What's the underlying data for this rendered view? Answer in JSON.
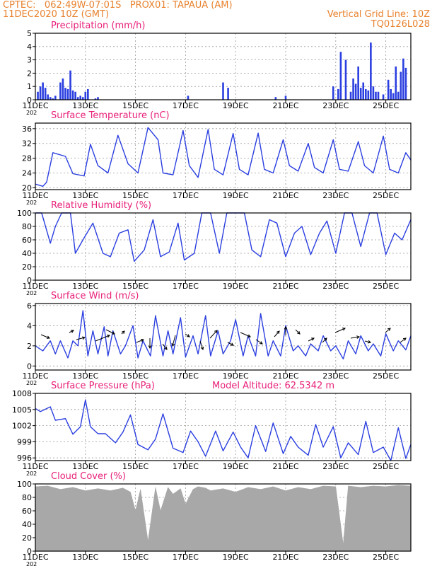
{
  "header": {
    "left_line1": "CPTEC:   062:49W-07:01S   PROX01: TAPAUA (AM)",
    "left_line2": "11DEC2020 10Z (GMT)",
    "right_line1": "Vertical Grid Line: 10Z",
    "right_line2": "TQ0126L028"
  },
  "colors": {
    "header": "#e8822e",
    "title": "#e8207a",
    "series": "#2b3fe0",
    "cloud": "#a8a8a8",
    "grid": "#9a9a9a",
    "frame": "#000000"
  },
  "x_axis": {
    "range_days": [
      0,
      15
    ],
    "tick_day_offsets": [
      0,
      2,
      4,
      6,
      8,
      10,
      12,
      14
    ],
    "tick_labels": [
      "11DEC",
      "13DEC",
      "15DEC",
      "17DEC",
      "19DEC",
      "21DEC",
      "23DEC",
      "25DEC"
    ],
    "year_fragment": "202"
  },
  "chart_data": [
    {
      "id": "precip",
      "type": "bar",
      "title": "Precipitation (mm/h)",
      "ylim": [
        0,
        5
      ],
      "yticks": [
        0,
        1,
        2,
        3,
        4,
        5
      ],
      "grid": true,
      "x_day_offsets": [
        0.1,
        0.2,
        0.3,
        0.4,
        0.5,
        0.6,
        0.7,
        0.8,
        1.0,
        1.1,
        1.2,
        1.3,
        1.4,
        1.5,
        1.6,
        1.7,
        1.8,
        1.9,
        2.0,
        2.1,
        2.4,
        2.5,
        6.1,
        7.5,
        7.7,
        9.6,
        10.0,
        11.9,
        12.1,
        12.2,
        12.4,
        12.6,
        12.7,
        12.8,
        12.9,
        13.0,
        13.1,
        13.2,
        13.3,
        13.4,
        13.5,
        13.6,
        13.7,
        13.9,
        14.1,
        14.2,
        14.3,
        14.4,
        14.5,
        14.6,
        14.7,
        14.8
      ],
      "values": [
        0.6,
        1.0,
        1.3,
        0.9,
        0.4,
        0.2,
        0.1,
        0.3,
        1.3,
        1.6,
        0.9,
        0.8,
        2.2,
        0.7,
        0.6,
        0.2,
        0.3,
        0.2,
        0.6,
        0.8,
        0.1,
        0.2,
        0.3,
        1.3,
        0.9,
        0.2,
        0.3,
        1.0,
        0.8,
        3.6,
        3.0,
        0.6,
        1.6,
        1.2,
        2.5,
        0.9,
        1.3,
        0.8,
        0.7,
        4.3,
        1.0,
        0.6,
        0.6,
        0.4,
        1.5,
        0.8,
        0.5,
        2.5,
        0.6,
        2.1,
        3.1,
        2.4
      ]
    },
    {
      "id": "temp",
      "type": "line",
      "title": "Surface Temperature (nC)",
      "ylim": [
        19.5,
        37.5
      ],
      "yticks": [
        20,
        24,
        28,
        32,
        36
      ],
      "grid": true,
      "x_day_offsets": [
        0,
        0.3,
        0.45,
        0.7,
        1.2,
        1.5,
        1.95,
        2.2,
        2.5,
        2.9,
        3.3,
        3.7,
        4.1,
        4.5,
        4.9,
        5.1,
        5.5,
        5.9,
        6.15,
        6.5,
        6.9,
        7.15,
        7.5,
        7.9,
        8.15,
        8.5,
        8.9,
        9.15,
        9.5,
        9.9,
        10.15,
        10.5,
        10.9,
        11.15,
        11.5,
        11.9,
        12.15,
        12.5,
        12.9,
        13.15,
        13.5,
        13.9,
        14.15,
        14.5,
        14.8,
        15.0
      ],
      "values": [
        21.0,
        20.4,
        21.5,
        29.5,
        28.5,
        23.8,
        23.2,
        31.8,
        26.0,
        24.0,
        34.2,
        26.5,
        24.0,
        36.3,
        33.0,
        24.0,
        23.5,
        35.5,
        26.0,
        22.8,
        35.8,
        25.0,
        23.5,
        34.7,
        25.0,
        23.5,
        34.8,
        25.0,
        24.0,
        33.0,
        26.0,
        24.5,
        32.0,
        25.5,
        24.0,
        33.0,
        25.0,
        24.5,
        32.5,
        26.0,
        24.0,
        34.0,
        25.0,
        24.0,
        29.5,
        27.5
      ]
    },
    {
      "id": "rh",
      "type": "line",
      "title": "Relative Humidity (%)",
      "ylim": [
        0,
        100
      ],
      "yticks": [
        0,
        20,
        40,
        60,
        80,
        100
      ],
      "grid": true,
      "x_day_offsets": [
        0,
        0.25,
        0.6,
        0.8,
        1.05,
        1.4,
        1.6,
        1.9,
        2.3,
        2.7,
        3.0,
        3.35,
        3.7,
        3.95,
        4.35,
        4.7,
        5.0,
        5.35,
        5.7,
        5.95,
        6.35,
        6.65,
        7.0,
        7.35,
        7.65,
        8.0,
        8.35,
        8.65,
        9.0,
        9.35,
        9.65,
        10.0,
        10.35,
        10.65,
        11.0,
        11.35,
        11.65,
        12.0,
        12.35,
        12.65,
        13.0,
        13.35,
        13.65,
        14.0,
        14.35,
        14.65,
        15.0
      ],
      "values": [
        100,
        100,
        55,
        80,
        100,
        100,
        40,
        60,
        85,
        40,
        35,
        70,
        75,
        28,
        45,
        90,
        35,
        42,
        85,
        30,
        40,
        100,
        100,
        40,
        100,
        100,
        100,
        45,
        35,
        90,
        85,
        35,
        70,
        80,
        38,
        70,
        88,
        40,
        100,
        100,
        50,
        100,
        100,
        38,
        70,
        60,
        90
      ]
    },
    {
      "id": "wind",
      "type": "line",
      "title": "Surface Wind (m/s)",
      "ylim": [
        -0.4,
        6.2
      ],
      "yticks": [
        0,
        2,
        4,
        6
      ],
      "grid": true,
      "x_day_offsets": [
        0,
        0.3,
        0.6,
        0.8,
        1.0,
        1.3,
        1.5,
        1.7,
        1.9,
        2.1,
        2.3,
        2.5,
        2.75,
        2.9,
        3.1,
        3.4,
        3.6,
        3.9,
        4.1,
        4.3,
        4.6,
        4.8,
        5.1,
        5.3,
        5.5,
        5.8,
        6.0,
        6.3,
        6.5,
        6.8,
        7.0,
        7.3,
        7.5,
        7.8,
        8.0,
        8.3,
        8.5,
        8.8,
        9.0,
        9.3,
        9.5,
        9.8,
        10.0,
        10.3,
        10.5,
        10.8,
        11.0,
        11.3,
        11.5,
        11.8,
        12.0,
        12.3,
        12.5,
        12.8,
        13.0,
        13.3,
        13.5,
        13.8,
        14.0,
        14.3,
        14.5,
        14.8,
        15.0
      ],
      "values": [
        2.0,
        1.5,
        2.5,
        1.2,
        2.5,
        0.8,
        2.5,
        2.0,
        5.5,
        1.0,
        3.5,
        1.2,
        3.9,
        1.0,
        3.5,
        1.2,
        2.0,
        4.0,
        0.8,
        2.5,
        1.0,
        5.0,
        1.0,
        3.5,
        1.2,
        4.8,
        0.9,
        3.0,
        1.2,
        5.0,
        1.0,
        3.5,
        1.2,
        2.5,
        4.6,
        1.0,
        3.0,
        1.0,
        5.2,
        1.0,
        2.5,
        1.0,
        4.0,
        1.5,
        2.0,
        1.0,
        2.2,
        1.5,
        3.0,
        1.5,
        2.0,
        0.7,
        2.5,
        1.2,
        3.0,
        1.5,
        2.2,
        1.0,
        3.2,
        1.5,
        2.5,
        1.6,
        3.0
      ]
    },
    {
      "id": "pressure",
      "type": "line",
      "title": "Surface Pressure (hPa)",
      "annotation": "Model Altitude: 62.5342  m",
      "ylim": [
        995.5,
        1008
      ],
      "yticks": [
        996,
        999,
        1002,
        1005,
        1008
      ],
      "ytick_labels": [
        "996",
        "999",
        "1002",
        "1005",
        "1008"
      ],
      "grid": true,
      "x_day_offsets": [
        0,
        0.2,
        0.6,
        0.8,
        1.2,
        1.5,
        1.8,
        2.0,
        2.2,
        2.5,
        2.8,
        3.2,
        3.5,
        3.8,
        4.1,
        4.5,
        4.8,
        5.1,
        5.5,
        5.9,
        6.2,
        6.5,
        6.8,
        7.2,
        7.5,
        7.9,
        8.2,
        8.5,
        8.8,
        9.2,
        9.5,
        9.9,
        10.2,
        10.5,
        10.9,
        11.2,
        11.5,
        11.9,
        12.2,
        12.5,
        12.9,
        13.2,
        13.5,
        13.9,
        14.2,
        14.5,
        14.8,
        15.0
      ],
      "values": [
        1005.2,
        1004.6,
        1005.5,
        1003.0,
        1003.3,
        1000.4,
        1001.8,
        1006.8,
        1001.8,
        1000.5,
        1000.5,
        998.8,
        1000.8,
        1004.0,
        998.5,
        997.5,
        999.5,
        1004.2,
        997.8,
        997.0,
        1001.0,
        999.0,
        996.3,
        1001.0,
        997.3,
        1000.8,
        998.0,
        996.0,
        1002.0,
        997.2,
        1002.5,
        996.8,
        1000.0,
        998.0,
        996.5,
        1002.2,
        998.0,
        1001.8,
        996.0,
        998.8,
        996.6,
        1002.8,
        997.0,
        998.0,
        995.5,
        1001.6,
        995.9,
        998.5
      ]
    },
    {
      "id": "cloud",
      "type": "area",
      "title": "Cloud Cover (%)",
      "ylim": [
        0,
        100
      ],
      "yticks": [
        0,
        20,
        40,
        60,
        80,
        100
      ],
      "grid": true,
      "x_day_offsets": [
        0,
        0.5,
        1.0,
        1.5,
        2.0,
        2.5,
        3.0,
        3.5,
        3.8,
        4.0,
        4.2,
        4.5,
        4.8,
        5.0,
        5.3,
        5.5,
        5.8,
        6.0,
        6.3,
        6.5,
        6.8,
        7.0,
        7.5,
        8.0,
        8.5,
        9.0,
        9.5,
        10.0,
        10.5,
        11.0,
        11.5,
        12.0,
        12.3,
        12.5,
        13.0,
        13.5,
        14.0,
        14.5,
        15.0
      ],
      "values": [
        96,
        97,
        92,
        95,
        90,
        93,
        90,
        94,
        88,
        60,
        92,
        15,
        95,
        60,
        95,
        85,
        93,
        70,
        92,
        96,
        94,
        90,
        93,
        88,
        95,
        92,
        96,
        90,
        95,
        92,
        97,
        96,
        10,
        97,
        95,
        97,
        96,
        98,
        97
      ]
    }
  ]
}
